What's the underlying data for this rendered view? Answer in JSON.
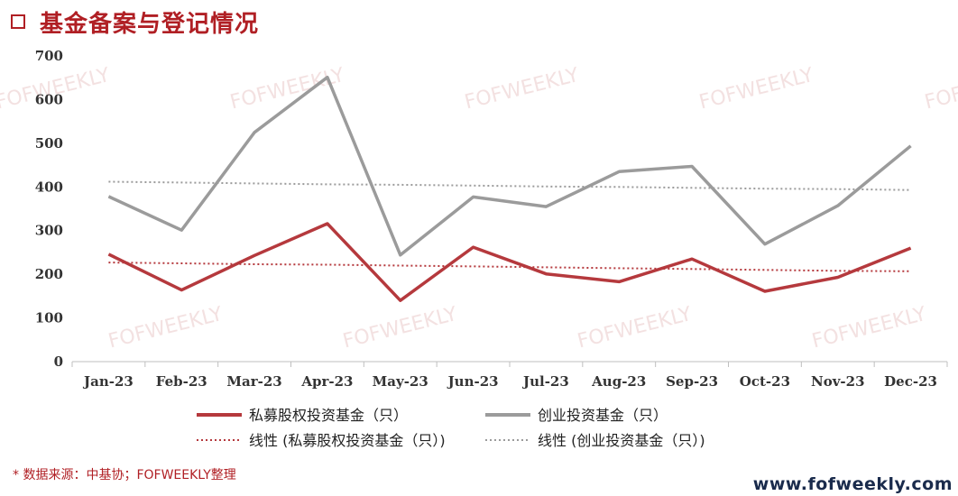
{
  "header": {
    "title": "基金备案与登记情况",
    "icon": "square-outline-icon"
  },
  "chart_data": {
    "type": "line",
    "categories": [
      "Jan-23",
      "Feb-23",
      "Mar-23",
      "Apr-23",
      "May-23",
      "Jun-23",
      "Jul-23",
      "Aug-23",
      "Sep-23",
      "Oct-23",
      "Nov-23",
      "Dec-23"
    ],
    "ylim": [
      0,
      700
    ],
    "yticks": [
      "0",
      "100",
      "200",
      "300",
      "400",
      "500",
      "600",
      "700"
    ],
    "grid": false,
    "legend_position": "bottom",
    "series": [
      {
        "name": "私募股权投资基金（只）",
        "style": "solid",
        "color": "#b5393d",
        "values": [
          246,
          164,
          243,
          316,
          140,
          262,
          201,
          183,
          235,
          161,
          193,
          260
        ]
      },
      {
        "name": "创业投资基金（只）",
        "style": "solid",
        "color": "#9b9b9b",
        "values": [
          378,
          301,
          525,
          651,
          244,
          377,
          355,
          435,
          447,
          269,
          357,
          494
        ]
      },
      {
        "name": "线性 (私募股权投资基金（只）)",
        "style": "dotted",
        "color": "#b5393d",
        "values": [
          227,
          225,
          223,
          222,
          220,
          218,
          216,
          214,
          212,
          210,
          208,
          207
        ]
      },
      {
        "name": "线性 (创业投资基金（只）)",
        "style": "dotted",
        "color": "#9b9b9b",
        "values": [
          412,
          410,
          408,
          406,
          405,
          403,
          401,
          400,
          398,
          396,
          395,
          393
        ]
      }
    ]
  },
  "watermark": "FOFWEEKLY",
  "footnote": "* 数据来源：中基协；FOFWEEKLY整理",
  "website": "www.fofweekly.com"
}
